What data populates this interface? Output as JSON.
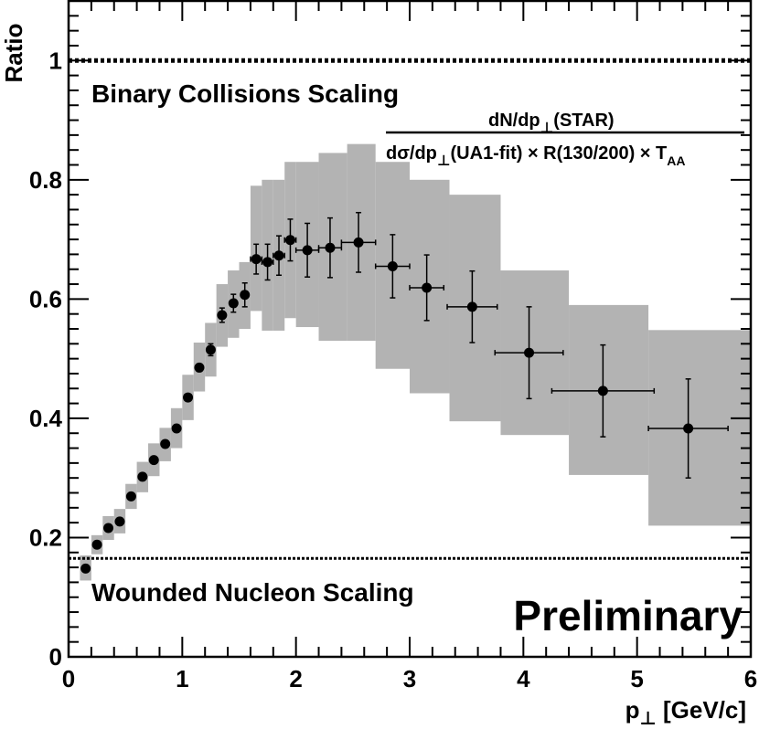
{
  "chart_data": {
    "type": "scatter",
    "ylabel": "Ratio",
    "xlabel_main": "p",
    "xlabel_sub": "⊥",
    "xlabel_rest": " [GeV/c]",
    "xlim": [
      0,
      6
    ],
    "ylim": [
      0,
      1.1
    ],
    "x_ticks": [
      "0",
      "1",
      "2",
      "3",
      "4",
      "5",
      "6"
    ],
    "y_ticks": [
      "0",
      "0.2",
      "0.4",
      "0.6",
      "0.8",
      "1"
    ],
    "x_tick_values": [
      0,
      1,
      2,
      3,
      4,
      5,
      6
    ],
    "y_tick_values": [
      0,
      0.2,
      0.4,
      0.6,
      0.8,
      1.0
    ],
    "reference_lines": [
      {
        "y": 1.0,
        "label": "Binary Collisions Scaling",
        "style": "dotted"
      },
      {
        "y": 0.165,
        "label": "Wounded Nucleon Scaling",
        "style": "dotted"
      }
    ],
    "formula": {
      "numerator": "dN/dp",
      "numerator_sub": "⊥",
      "numerator_rest": "(STAR)",
      "denominator_a": "dσ/dp",
      "denominator_sub": "⊥",
      "denominator_b": "(UA1-fit) × R(130/200) × T",
      "denominator_sub2": "AA"
    },
    "watermark": "Preliminary",
    "grid": false,
    "series": [
      {
        "points": [
          {
            "x": 0.15,
            "y": 0.148,
            "xerr": 0,
            "yerr": 0,
            "bx0": 0.1,
            "bx1": 0.2,
            "by0": 0.128,
            "by1": 0.17
          },
          {
            "x": 0.25,
            "y": 0.188,
            "xerr": 0,
            "yerr": 0,
            "bx0": 0.2,
            "bx1": 0.3,
            "by0": 0.172,
            "by1": 0.204
          },
          {
            "x": 0.35,
            "y": 0.216,
            "xerr": 0,
            "yerr": 0,
            "bx0": 0.3,
            "bx1": 0.4,
            "by0": 0.196,
            "by1": 0.236
          },
          {
            "x": 0.45,
            "y": 0.227,
            "xerr": 0,
            "yerr": 0,
            "bx0": 0.4,
            "bx1": 0.5,
            "by0": 0.207,
            "by1": 0.248
          },
          {
            "x": 0.55,
            "y": 0.269,
            "xerr": 0,
            "yerr": 0,
            "bx0": 0.5,
            "bx1": 0.6,
            "by0": 0.248,
            "by1": 0.29
          },
          {
            "x": 0.65,
            "y": 0.302,
            "xerr": 0,
            "yerr": 0,
            "bx0": 0.6,
            "bx1": 0.7,
            "by0": 0.276,
            "by1": 0.327
          },
          {
            "x": 0.75,
            "y": 0.33,
            "xerr": 0,
            "yerr": 0,
            "bx0": 0.7,
            "bx1": 0.8,
            "by0": 0.303,
            "by1": 0.358
          },
          {
            "x": 0.85,
            "y": 0.357,
            "xerr": 0,
            "yerr": 0,
            "bx0": 0.8,
            "bx1": 0.9,
            "by0": 0.328,
            "by1": 0.384
          },
          {
            "x": 0.95,
            "y": 0.383,
            "xerr": 0,
            "yerr": 0,
            "bx0": 0.9,
            "bx1": 1.0,
            "by0": 0.35,
            "by1": 0.417
          },
          {
            "x": 1.05,
            "y": 0.435,
            "xerr": 0,
            "yerr": 0,
            "bx0": 1.0,
            "bx1": 1.1,
            "by0": 0.397,
            "by1": 0.473
          },
          {
            "x": 1.15,
            "y": 0.485,
            "xerr": 0,
            "yerr": 0,
            "bx0": 1.1,
            "bx1": 1.2,
            "by0": 0.445,
            "by1": 0.527
          },
          {
            "x": 1.25,
            "y": 0.515,
            "xerr": 0,
            "yerr": 0.01,
            "bx0": 1.2,
            "bx1": 1.3,
            "by0": 0.47,
            "by1": 0.56
          },
          {
            "x": 1.35,
            "y": 0.573,
            "xerr": 0,
            "yerr": 0.012,
            "bx0": 1.3,
            "bx1": 1.4,
            "by0": 0.52,
            "by1": 0.625
          },
          {
            "x": 1.45,
            "y": 0.593,
            "xerr": 0,
            "yerr": 0.015,
            "bx0": 1.4,
            "bx1": 1.5,
            "by0": 0.535,
            "by1": 0.648
          },
          {
            "x": 1.55,
            "y": 0.607,
            "xerr": 0,
            "yerr": 0.02,
            "bx0": 1.5,
            "bx1": 1.6,
            "by0": 0.55,
            "by1": 0.662
          },
          {
            "x": 1.65,
            "y": 0.667,
            "xerr": 0.05,
            "yerr": 0.025,
            "bx0": 1.6,
            "bx1": 1.7,
            "by0": 0.58,
            "by1": 0.79
          },
          {
            "x": 1.75,
            "y": 0.662,
            "xerr": 0.05,
            "yerr": 0.03,
            "bx0": 1.7,
            "bx1": 1.8,
            "by0": 0.547,
            "by1": 0.8
          },
          {
            "x": 1.85,
            "y": 0.673,
            "xerr": 0.05,
            "yerr": 0.033,
            "bx0": 1.8,
            "bx1": 1.9,
            "by0": 0.547,
            "by1": 0.8
          },
          {
            "x": 1.95,
            "y": 0.699,
            "xerr": 0.05,
            "yerr": 0.035,
            "bx0": 1.9,
            "bx1": 2.0,
            "by0": 0.568,
            "by1": 0.83
          },
          {
            "x": 2.1,
            "y": 0.682,
            "xerr": 0.1,
            "yerr": 0.045,
            "bx0": 2.0,
            "bx1": 2.2,
            "by0": 0.553,
            "by1": 0.83
          },
          {
            "x": 2.3,
            "y": 0.686,
            "xerr": 0.1,
            "yerr": 0.05,
            "bx0": 2.2,
            "bx1": 2.45,
            "by0": 0.53,
            "by1": 0.845
          },
          {
            "x": 2.55,
            "y": 0.695,
            "xerr": 0.15,
            "yerr": 0.05,
            "bx0": 2.45,
            "bx1": 2.7,
            "by0": 0.53,
            "by1": 0.86
          },
          {
            "x": 2.85,
            "y": 0.655,
            "xerr": 0.15,
            "yerr": 0.053,
            "bx0": 2.7,
            "bx1": 3.0,
            "by0": 0.483,
            "by1": 0.83
          },
          {
            "x": 3.15,
            "y": 0.619,
            "xerr": 0.15,
            "yerr": 0.055,
            "bx0": 3.0,
            "bx1": 3.35,
            "by0": 0.442,
            "by1": 0.8
          },
          {
            "x": 3.55,
            "y": 0.587,
            "xerr": 0.22,
            "yerr": 0.06,
            "bx0": 3.35,
            "bx1": 3.8,
            "by0": 0.395,
            "by1": 0.775
          },
          {
            "x": 4.05,
            "y": 0.51,
            "xerr": 0.3,
            "yerr": 0.077,
            "bx0": 3.8,
            "bx1": 4.4,
            "by0": 0.372,
            "by1": 0.648
          },
          {
            "x": 4.7,
            "y": 0.446,
            "xerr": 0.45,
            "yerr": 0.077,
            "bx0": 4.4,
            "bx1": 5.1,
            "by0": 0.305,
            "by1": 0.59
          },
          {
            "x": 5.45,
            "y": 0.383,
            "xerr": 0.35,
            "yerr": 0.083,
            "bx0": 5.1,
            "bx1": 6.0,
            "by0": 0.22,
            "by1": 0.548
          }
        ]
      }
    ]
  }
}
